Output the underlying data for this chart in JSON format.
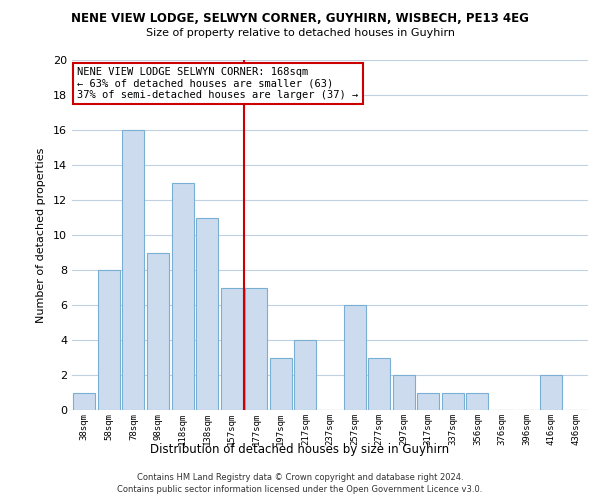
{
  "title": "NENE VIEW LODGE, SELWYN CORNER, GUYHIRN, WISBECH, PE13 4EG",
  "subtitle": "Size of property relative to detached houses in Guyhirn",
  "xlabel": "Distribution of detached houses by size in Guyhirn",
  "ylabel": "Number of detached properties",
  "categories": [
    "38sqm",
    "58sqm",
    "78sqm",
    "98sqm",
    "118sqm",
    "138sqm",
    "157sqm",
    "177sqm",
    "197sqm",
    "217sqm",
    "237sqm",
    "257sqm",
    "277sqm",
    "297sqm",
    "317sqm",
    "337sqm",
    "356sqm",
    "376sqm",
    "396sqm",
    "416sqm",
    "436sqm"
  ],
  "values": [
    1,
    8,
    16,
    9,
    13,
    11,
    7,
    7,
    3,
    4,
    0,
    6,
    3,
    2,
    1,
    1,
    1,
    0,
    0,
    2,
    0
  ],
  "bar_color": "#ccdcee",
  "bar_edge_color": "#7aafd4",
  "reference_line_color": "#cc0000",
  "ylim": [
    0,
    20
  ],
  "yticks": [
    0,
    2,
    4,
    6,
    8,
    10,
    12,
    14,
    16,
    18,
    20
  ],
  "annotation_title": "NENE VIEW LODGE SELWYN CORNER: 168sqm",
  "annotation_line1": "← 63% of detached houses are smaller (63)",
  "annotation_line2": "37% of semi-detached houses are larger (37) →",
  "annotation_box_color": "#ffffff",
  "annotation_box_edge": "#cc0000",
  "footer1": "Contains HM Land Registry data © Crown copyright and database right 2024.",
  "footer2": "Contains public sector information licensed under the Open Government Licence v3.0.",
  "background_color": "#ffffff",
  "grid_color": "#c0d0e0"
}
